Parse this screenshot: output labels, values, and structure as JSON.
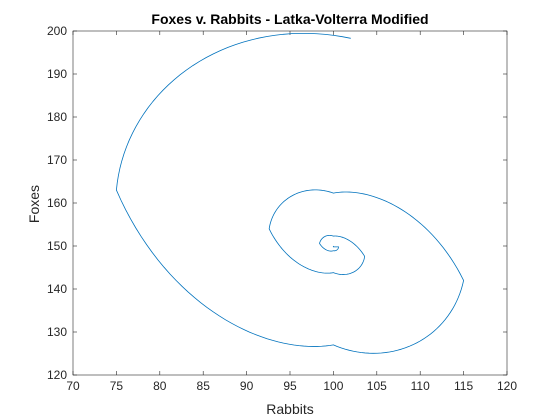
{
  "chart_data": {
    "type": "line",
    "title": "Foxes v. Rabbits - Latka-Volterra Modified",
    "xlabel": "Rabbits",
    "ylabel": "Foxes",
    "xlim": [
      70,
      120
    ],
    "ylim": [
      120,
      200
    ],
    "xticks": [
      "70",
      "75",
      "80",
      "85",
      "90",
      "95",
      "100",
      "105",
      "110",
      "115",
      "120"
    ],
    "yticks": [
      "120",
      "130",
      "140",
      "150",
      "160",
      "170",
      "180",
      "190",
      "200"
    ],
    "grid": false,
    "legend": "none",
    "series": [
      {
        "color": "#0072BD",
        "spiral": {
          "center": [
            100,
            150
          ],
          "start": [
            102,
            198.3
          ],
          "x_extrema": [
            [
              75,
              163
            ],
            [
              115,
              142
            ],
            [
              92.6,
              154
            ],
            [
              103.6,
              147.6
            ],
            [
              98.4,
              150.6
            ],
            [
              100.6,
              149.8
            ]
          ],
          "y_extrema": [
            [
              100,
              127
            ],
            [
              100,
              162.3
            ],
            [
              100,
              143.8
            ],
            [
              100,
              152.3
            ],
            [
              100,
              148.9
            ]
          ],
          "end": [
            100,
            150
          ]
        }
      }
    ]
  },
  "colors": {
    "axes": "#262626",
    "line": "#0072BD",
    "background": "#ffffff"
  }
}
